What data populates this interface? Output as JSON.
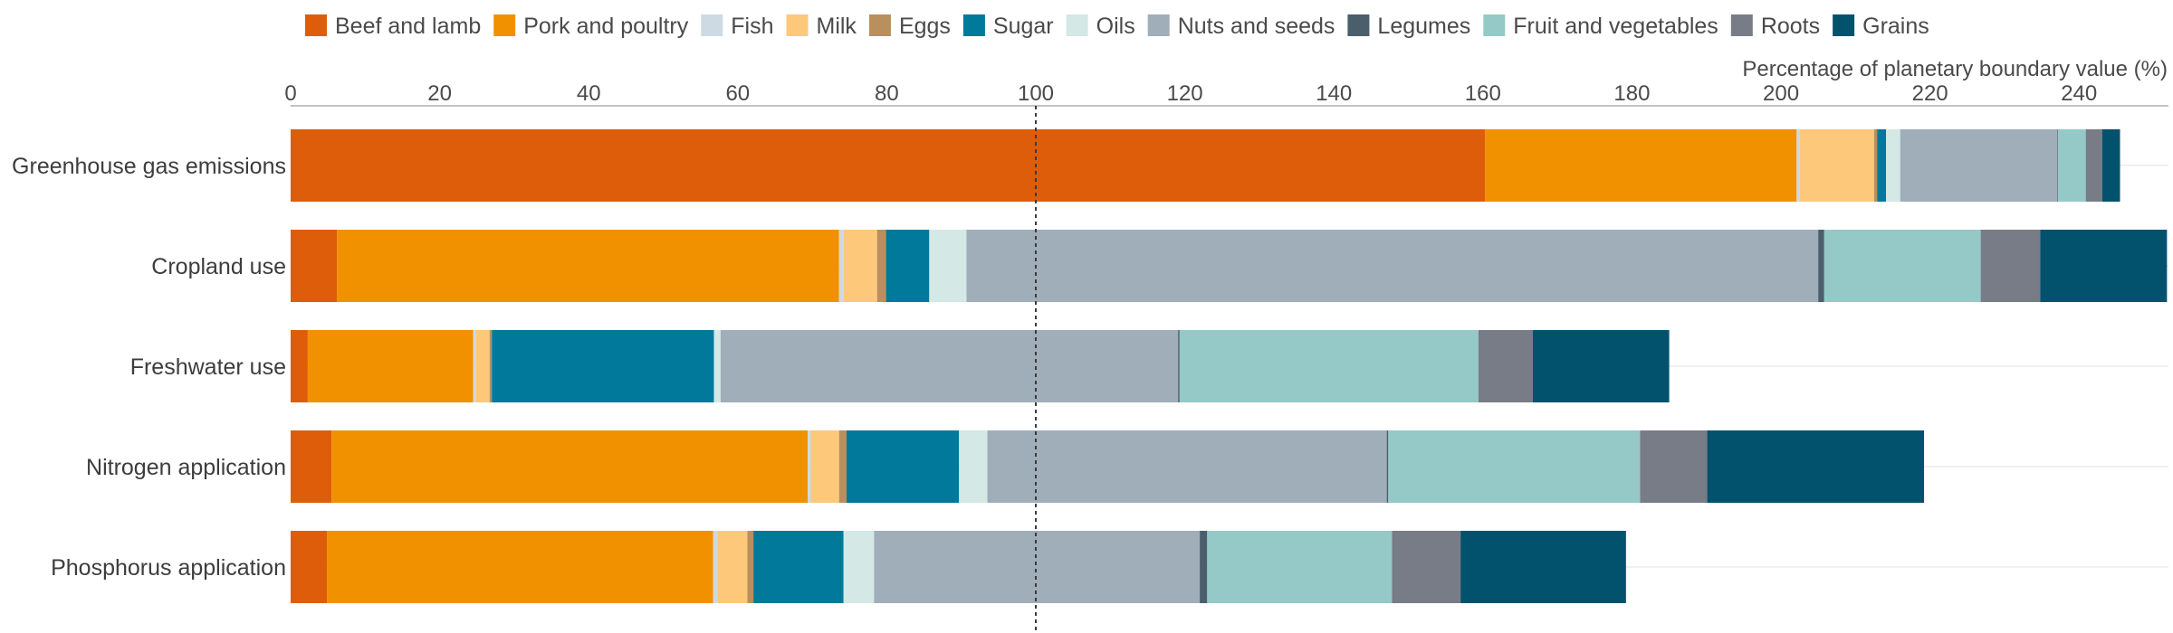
{
  "chart_data": {
    "type": "bar",
    "orientation": "horizontal",
    "stacked": true,
    "xlabel": "Percentage of planetary boundary value (%)",
    "xlim": [
      0,
      252
    ],
    "xticks": [
      0,
      20,
      40,
      60,
      80,
      100,
      120,
      140,
      160,
      180,
      200,
      220,
      240
    ],
    "reference_line": 100,
    "grid": false,
    "legend_position": "top",
    "categories": [
      "Greenhouse gas emissions",
      "Cropland use",
      "Freshwater use",
      "Nitrogen application",
      "Phosphorus application"
    ],
    "series": [
      {
        "name": "Beef and lamb",
        "color": "#de5d0a",
        "values": [
          160.3,
          6.2,
          2.3,
          5.5,
          4.9
        ]
      },
      {
        "name": "Pork and poultry",
        "color": "#f29100",
        "values": [
          41.8,
          67.4,
          22.2,
          63.9,
          51.8
        ]
      },
      {
        "name": "Fish",
        "color": "#cdd9e3",
        "values": [
          0.4,
          0.6,
          0.4,
          0.4,
          0.6
        ]
      },
      {
        "name": "Milk",
        "color": "#fdc87a",
        "values": [
          10.0,
          4.5,
          1.8,
          3.8,
          4.0
        ]
      },
      {
        "name": "Eggs",
        "color": "#b98f5e",
        "values": [
          0.4,
          1.2,
          0.3,
          1.0,
          0.8
        ]
      },
      {
        "name": "Sugar",
        "color": "#00799a",
        "values": [
          1.2,
          5.8,
          29.8,
          15.1,
          12.1
        ]
      },
      {
        "name": "Oils",
        "color": "#d4e8e6",
        "values": [
          1.9,
          5.0,
          0.9,
          3.8,
          4.1
        ]
      },
      {
        "name": "Nuts and seeds",
        "color": "#a0aeb9",
        "values": [
          21.1,
          114.3,
          61.4,
          53.6,
          43.7
        ]
      },
      {
        "name": "Legumes",
        "color": "#4b5e6c",
        "values": [
          0.1,
          0.8,
          0.2,
          0.2,
          1.0
        ]
      },
      {
        "name": "Fruit and vegetables",
        "color": "#94c9c8",
        "values": [
          3.7,
          21.0,
          40.1,
          33.8,
          24.8
        ]
      },
      {
        "name": "Roots",
        "color": "#777c86",
        "values": [
          2.2,
          8.0,
          7.3,
          9.0,
          9.2
        ]
      },
      {
        "name": "Grains",
        "color": "#02526d",
        "values": [
          2.4,
          17.0,
          18.3,
          29.1,
          22.2
        ]
      }
    ]
  }
}
